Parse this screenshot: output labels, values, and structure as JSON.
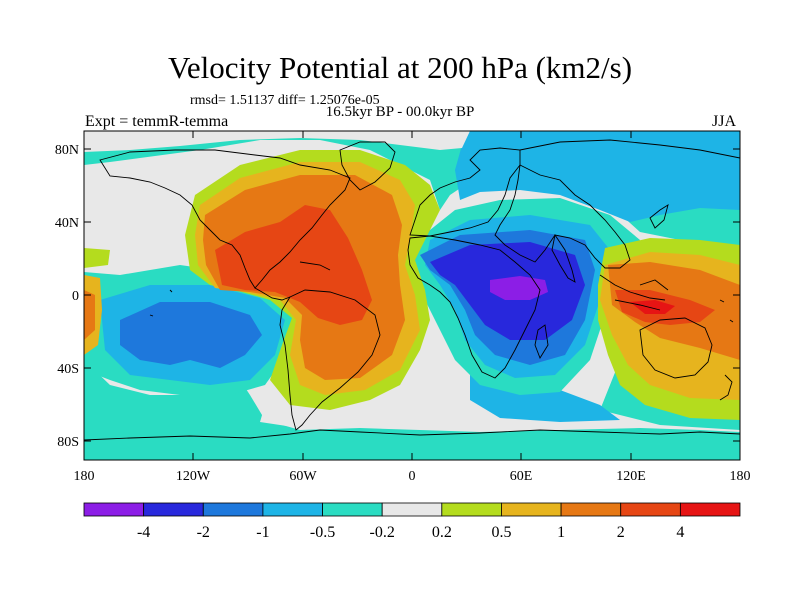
{
  "header": {
    "title": "Velocity Potential at 200 hPa (km2/s)",
    "stats": "rmsd= 1.51137 diff= 1.25076e-05",
    "subtitle": "16.5kyr BP - 00.0kyr BP",
    "left_label": "Expt = temmR-temma",
    "right_label": "JJA"
  },
  "axes": {
    "x_ticks": [
      "180",
      "120W",
      "60W",
      "0",
      "60E",
      "120E",
      "180"
    ],
    "y_ticks": [
      "80N",
      "40N",
      "0",
      "40S",
      "80S"
    ]
  },
  "colorbar": {
    "colors": [
      "#8c1ee6",
      "#2828dc",
      "#1e78dc",
      "#1eb4e6",
      "#2adcc2",
      "#e8e8e8",
      "#b4dc1e",
      "#e6b41e",
      "#e67814",
      "#e64614",
      "#e61414"
    ],
    "labels": [
      "-4",
      "-2",
      "-1",
      "-0.5",
      "-0.2",
      "0.2",
      "0.5",
      "1",
      "2",
      "4"
    ]
  }
}
